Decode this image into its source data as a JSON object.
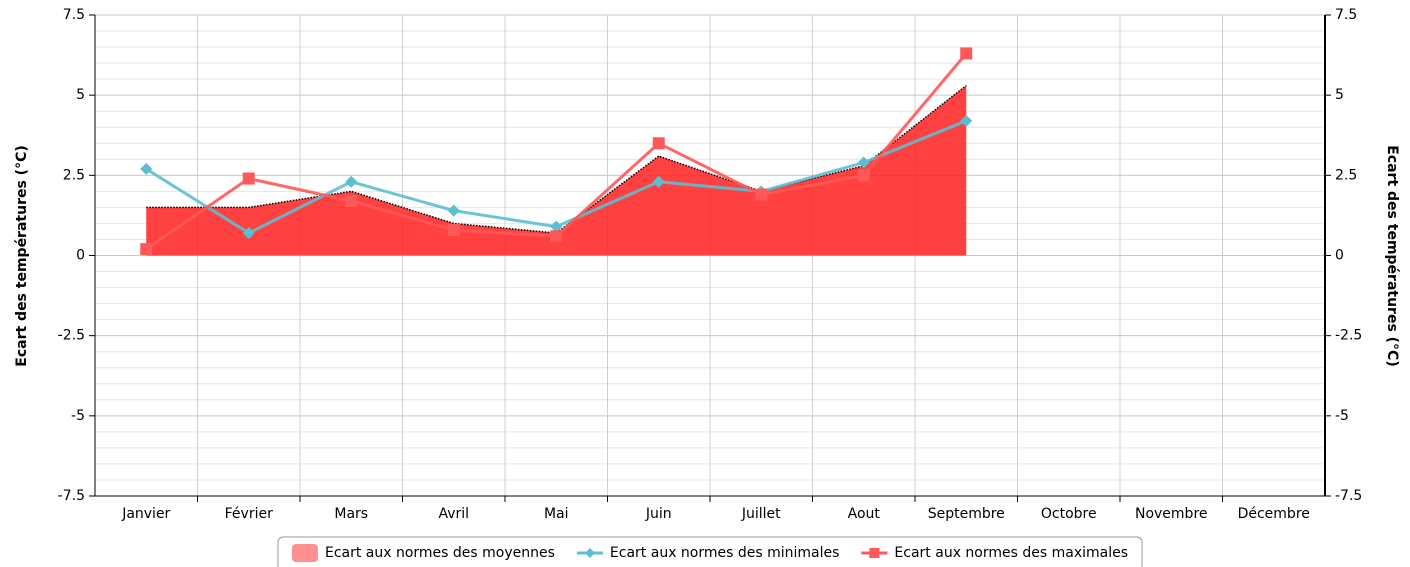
{
  "chart_data": {
    "type": "line",
    "categories": [
      "Janvier",
      "Février",
      "Mars",
      "Avril",
      "Mai",
      "Juin",
      "Juillet",
      "Aout",
      "Septembre",
      "Octobre",
      "Novembre",
      "Décembre"
    ],
    "series": [
      {
        "name": "Ecart aux normes des moyennes",
        "type": "area",
        "color": "#ff2020",
        "values": [
          1.5,
          1.5,
          2.0,
          1.0,
          0.7,
          3.1,
          2.0,
          2.8,
          5.3,
          null,
          null,
          null
        ]
      },
      {
        "name": "Ecart aux normes des minimales",
        "type": "line",
        "marker": "diamond",
        "color": "#5bbfd2",
        "values": [
          2.7,
          0.7,
          2.3,
          1.4,
          0.9,
          2.3,
          2.0,
          2.9,
          4.2,
          null,
          null,
          null
        ]
      },
      {
        "name": "Ecart aux normes des maximales",
        "type": "line",
        "marker": "square",
        "color": "#ff5858",
        "values": [
          0.2,
          2.4,
          1.7,
          0.8,
          0.6,
          3.5,
          1.9,
          2.5,
          6.3,
          null,
          null,
          null
        ]
      }
    ],
    "ylabel": "Ecart des températures (°C)",
    "y2label": "Ecart des températures (°C)",
    "ylim": [
      -7.5,
      7.5
    ],
    "yticks": [
      -7.5,
      -5,
      -2.5,
      0,
      2.5,
      5,
      7.5
    ],
    "y2lim": [
      -7.5,
      7.5
    ],
    "y2ticks": [
      -7.5,
      -5,
      -2.5,
      0,
      2.5,
      5,
      7.5
    ],
    "grid": true,
    "legend": "bottom"
  }
}
